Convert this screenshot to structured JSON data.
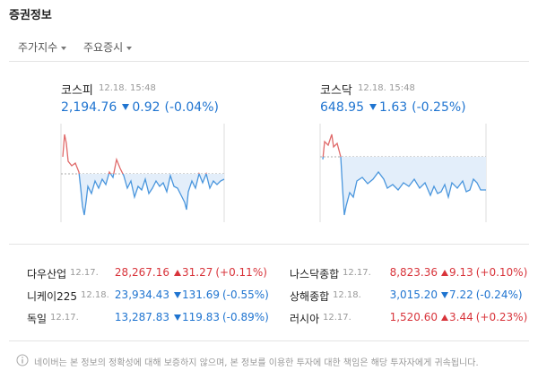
{
  "header": {
    "title": "증권정보"
  },
  "tabs": [
    "주가지수",
    "주요증시"
  ],
  "indices": [
    {
      "name": "코스피",
      "time": "12.18. 15:48",
      "value": "2,194.76",
      "change": "0.92",
      "rate": "(-0.04%)",
      "color": "#1f74d0"
    },
    {
      "name": "코스닥",
      "time": "12.18. 15:48",
      "value": "648.95",
      "change": "1.63",
      "rate": "(-0.25%)",
      "color": "#1f74d0"
    }
  ],
  "markets": [
    {
      "name": "다우산업",
      "time": "12.17.",
      "value": "28,267.16",
      "change": "31.27",
      "rate": "(+0.11%)",
      "color": "#d8343b"
    },
    {
      "name": "나스닥종합",
      "time": "12.17.",
      "value": "8,823.36",
      "change": "9.13",
      "rate": "(+0.10%)",
      "color": "#d8343b"
    },
    {
      "name": "니케이225",
      "time": "12.18.",
      "value": "23,934.43",
      "change": "131.69",
      "rate": "(-0.55%)",
      "color": "#1f74d0"
    },
    {
      "name": "상해종합",
      "time": "12.18.",
      "value": "3,015.20",
      "change": "7.22",
      "rate": "(-0.24%)",
      "color": "#1f74d0"
    },
    {
      "name": "독일",
      "time": "12.17.",
      "value": "13,287.83",
      "change": "119.83",
      "rate": "(-0.89%)",
      "color": "#1f74d0"
    },
    {
      "name": "러시아",
      "time": "12.17.",
      "value": "1,520.60",
      "change": "3.44",
      "rate": "(+0.23%)",
      "color": "#d8343b"
    }
  ],
  "notice": "네이버는 본 정보의 정확성에 대해 보증하지 않으며, 본 정보를 이용한 투자에 대한 책임은 해당 투자자에게 귀속됩니다."
}
